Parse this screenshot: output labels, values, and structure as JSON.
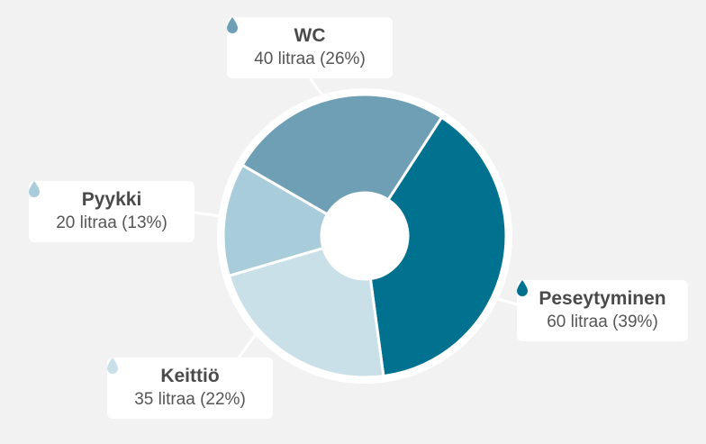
{
  "chart_data": {
    "type": "pie",
    "variant": "donut",
    "unit": "litraa",
    "slices": [
      {
        "label": "Peseytyminen",
        "value": 60,
        "percent": 39,
        "value_text": "60 litraa (39%)",
        "color": "#00718f"
      },
      {
        "label": "Keittiö",
        "value": 35,
        "percent": 22,
        "value_text": "35 litraa (22%)",
        "color": "#c9e0e8"
      },
      {
        "label": "Pyykki",
        "value": 20,
        "percent": 13,
        "value_text": "20 litraa (13%)",
        "color": "#a8ccda"
      },
      {
        "label": "WC",
        "value": 40,
        "percent": 26,
        "value_text": "40 litraa (26%)",
        "color": "#6f9fb5"
      }
    ],
    "colors": {
      "background": "#f2f2f2",
      "label_box": "#ffffff",
      "separator": "#ffffff",
      "connector": "#ffffff"
    },
    "icon": "water-drop-icon"
  }
}
